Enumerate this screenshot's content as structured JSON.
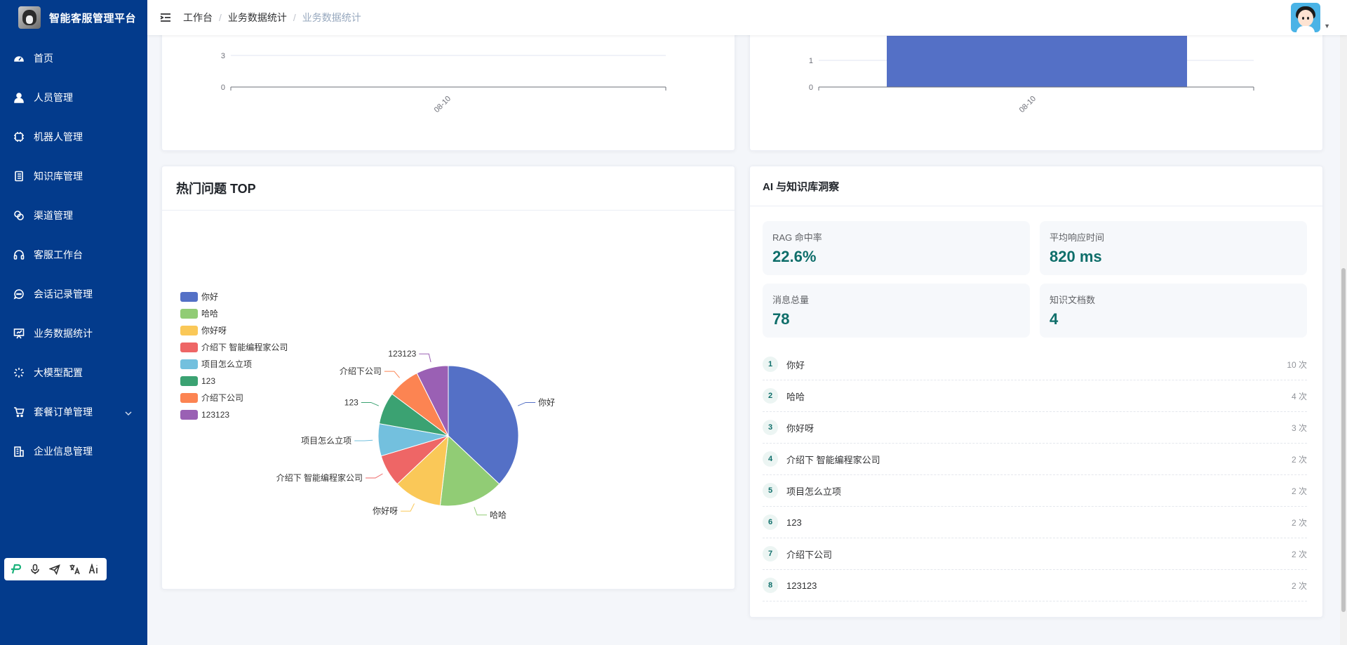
{
  "sidebar": {
    "brand": "智能客服管理平台",
    "items": [
      {
        "label": "首页",
        "icon": "dashboard-icon"
      },
      {
        "label": "人员管理",
        "icon": "user-icon"
      },
      {
        "label": "机器人管理",
        "icon": "chip-icon"
      },
      {
        "label": "知识库管理",
        "icon": "book-icon"
      },
      {
        "label": "渠道管理",
        "icon": "link-icon"
      },
      {
        "label": "客服工作台",
        "icon": "headset-icon"
      },
      {
        "label": "会话记录管理",
        "icon": "chat-icon"
      },
      {
        "label": "业务数据统计",
        "icon": "presentation-icon"
      },
      {
        "label": "大模型配置",
        "icon": "loading-icon"
      },
      {
        "label": "套餐订单管理",
        "icon": "cart-icon"
      },
      {
        "label": "企业信息管理",
        "icon": "office-icon"
      }
    ]
  },
  "header": {
    "breadcrumb": [
      "工作台",
      "业务数据统计",
      "业务数据统计"
    ]
  },
  "top_left_chart": {
    "y_ticks": [
      "3",
      "0"
    ],
    "x_tick": "08-10"
  },
  "top_right_chart": {
    "y_ticks": [
      "1",
      "0"
    ],
    "x_tick": "08-10"
  },
  "hot_questions": {
    "title": "热门问题 TOP"
  },
  "chart_data": [
    {
      "type": "pie",
      "title": "热门问题 TOP",
      "categories": [
        "你好",
        "哈哈",
        "你好呀",
        "介绍下 智能编程家公司",
        "项目怎么立项",
        "123",
        "介绍下公司",
        "123123"
      ],
      "values": [
        10,
        4,
        3,
        2,
        2,
        2,
        2,
        2
      ],
      "colors": [
        "#5470c6",
        "#91cc75",
        "#fac858",
        "#ee6666",
        "#73c0de",
        "#3ba272",
        "#fc8452",
        "#9a60b4"
      ],
      "legend_position": "left"
    }
  ],
  "insight": {
    "title": "AI 与知识库洞察",
    "stats": [
      {
        "label": "RAG 命中率",
        "value": "22.6%"
      },
      {
        "label": "平均响应时间",
        "value": "820 ms"
      },
      {
        "label": "消息总量",
        "value": "78"
      },
      {
        "label": "知识文档数",
        "value": "4"
      }
    ],
    "ranks": [
      {
        "n": "1",
        "q": "你好",
        "cnt": "10 次"
      },
      {
        "n": "2",
        "q": "哈哈",
        "cnt": "4 次"
      },
      {
        "n": "3",
        "q": "你好呀",
        "cnt": "3 次"
      },
      {
        "n": "4",
        "q": "介绍下 智能编程家公司",
        "cnt": "2 次"
      },
      {
        "n": "5",
        "q": "项目怎么立项",
        "cnt": "2 次"
      },
      {
        "n": "6",
        "q": "123",
        "cnt": "2 次"
      },
      {
        "n": "7",
        "q": "介绍下公司",
        "cnt": "2 次"
      },
      {
        "n": "8",
        "q": "123123",
        "cnt": "2 次"
      }
    ]
  }
}
